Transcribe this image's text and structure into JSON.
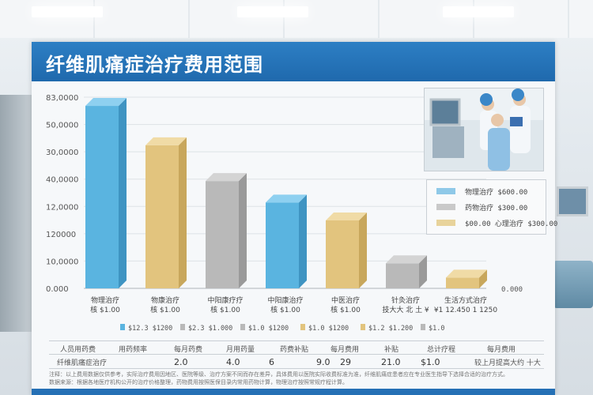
{
  "title": "纤维肌痛症治疗费用范围",
  "colors": {
    "blue": "#5ab4e0",
    "gold": "#e2c47e",
    "gray": "#b9b9b9",
    "header": "#2477bd"
  },
  "chart_data": {
    "type": "bar",
    "title": "纤维肌痛症治疗费用范围",
    "y_tick_labels": [
      "83,0000",
      "50,0000",
      "30,0000",
      "40,0000",
      "12,0000",
      "120000",
      "10,0000",
      "0.000"
    ],
    "categories": [
      {
        "line1": "物理治疗",
        "line2": "核 $1.00"
      },
      {
        "line1": "物康治疗",
        "line2": "核 $1.00"
      },
      {
        "line1": "中阳康疗疗",
        "line2": "核 $1.00"
      },
      {
        "line1": "中阳康治疗",
        "line2": "核 $1.00"
      },
      {
        "line1": "中医治疗",
        "line2": "核 $1.00"
      },
      {
        "line1": "针灸治疗",
        "line2": "技大大 北 土 ¥"
      },
      {
        "line1": "生活方式治疗",
        "line2": "¥1 12.450  1 1250"
      }
    ],
    "values": [
      51000,
      40000,
      30000,
      24000,
      19000,
      7000,
      3000
    ],
    "bar_colors": [
      "blue",
      "gold",
      "gray",
      "blue",
      "gold",
      "gray",
      "gold"
    ],
    "end_label": "0.000",
    "ylim": [
      0,
      53000
    ]
  },
  "legend_box": [
    {
      "color": "blue",
      "text": "物理治疗 $600.00"
    },
    {
      "color": "gray",
      "text": "药物治疗 $300.00"
    },
    {
      "color": "gold",
      "text": "$00.00 心理治疗 $300.00"
    }
  ],
  "bottom_legend": [
    {
      "color": "blue",
      "text": "$12.3 $1200"
    },
    {
      "color": "gray",
      "text": "$2.3 $1.000"
    },
    {
      "color": "gray",
      "text": "$1.0 $1200"
    },
    {
      "color": "gold",
      "text": "$1.0 $1200"
    },
    {
      "color": "gold",
      "text": "$1.2 $1.200"
    },
    {
      "color": "gray",
      "text": "$1.0"
    }
  ],
  "table": {
    "header": [
      "人员用药费",
      "用药频率",
      "每月药费",
      "月用药量",
      "药费补贴",
      "每月费用",
      "补贴",
      "总计疗程",
      "每月费用"
    ],
    "row_label": "纤维肌痛症治疗",
    "values": [
      "2.0",
      "4.0",
      "6",
      "9.0",
      "29",
      "21.0",
      "$1.0"
    ],
    "row_end": "较上月提高大约 十大"
  },
  "notes": [
    "注释：以上费用数据仅供参考，实际治疗费用因地区、医院等级、治疗方案不同而存在差异，具体费用以医院实际收费标准为准，纤维肌痛症患者应在专业医生指导下选择合适的治疗方式。",
    "数据来源：根据各地医疗机构公开的治疗价格整理，药物费用按照医保目录内常用药物计算，物理治疗按照常规疗程计算。"
  ]
}
